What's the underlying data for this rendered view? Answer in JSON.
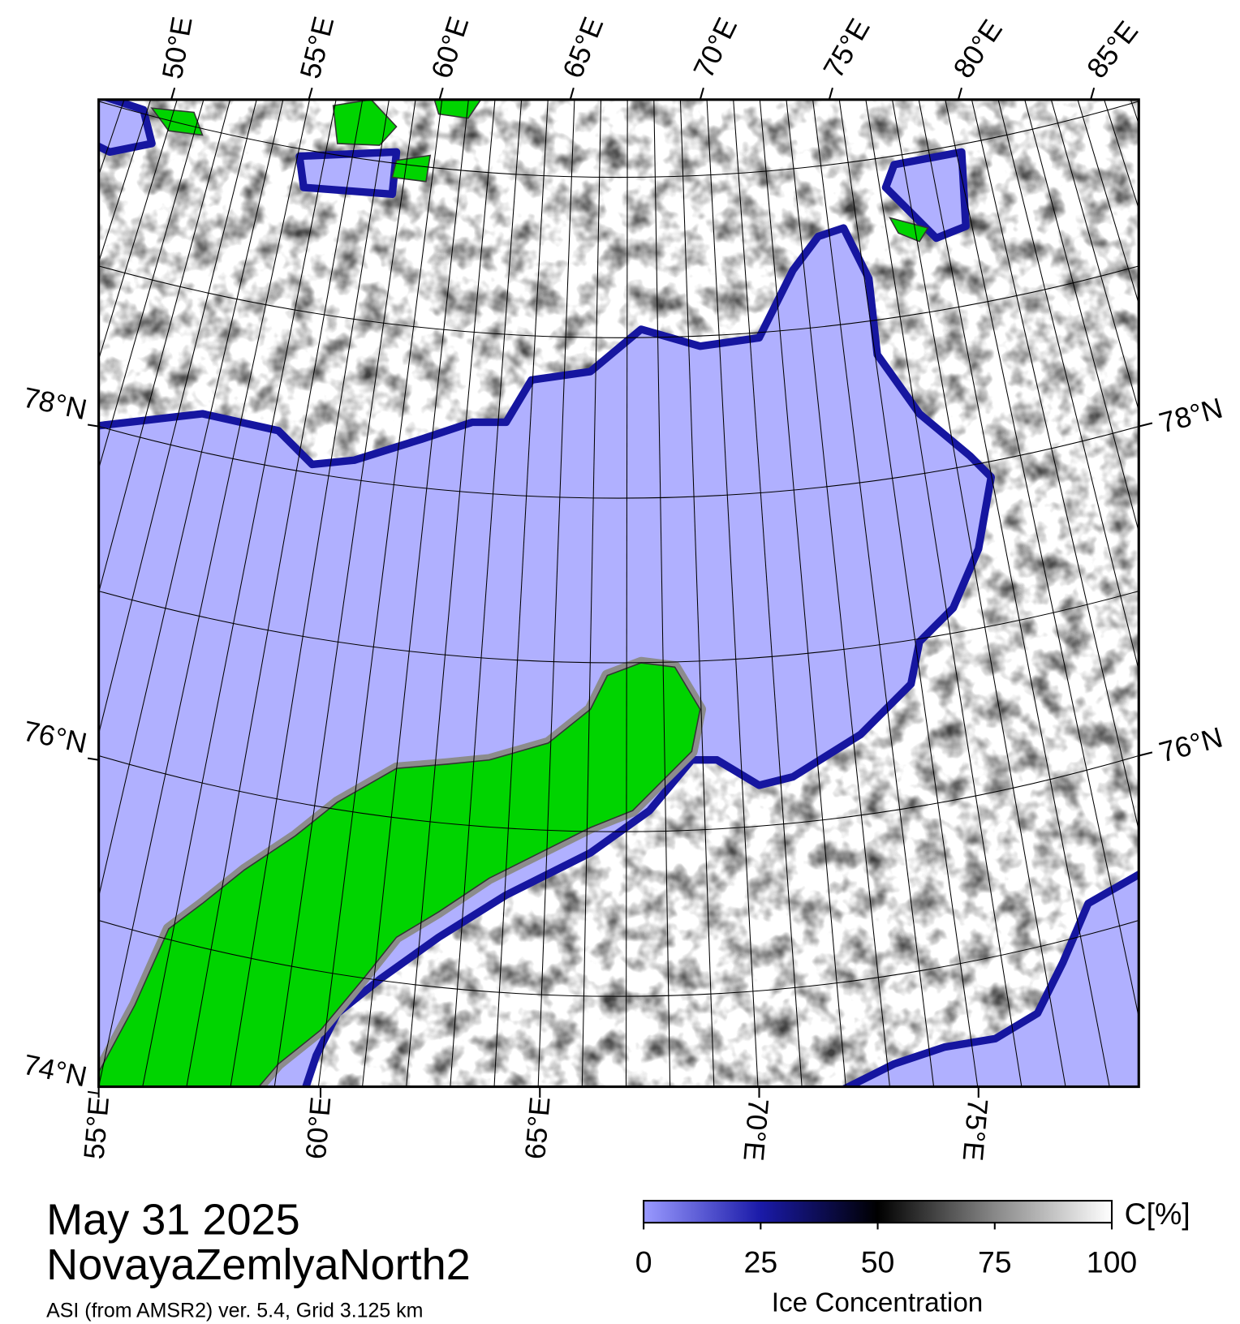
{
  "map": {
    "top_labels": [
      "50°E",
      "55°E",
      "60°E",
      "65°E",
      "70°E",
      "75°E",
      "80°E",
      "85°E"
    ],
    "bottom_labels": [
      "55°E",
      "60°E",
      "65°E",
      "70°E",
      "75°E"
    ],
    "left_labels": [
      "78°N",
      "76°N",
      "74°N"
    ],
    "right_labels": [
      "78°N",
      "76°N"
    ]
  },
  "caption": {
    "date": "May 31 2025",
    "region": "NovayaZemlyaNorth2",
    "source": "ASI (from AMSR2) ver. 5.4,  Grid 3.125 km"
  },
  "colorbar": {
    "ticks": [
      0,
      25,
      50,
      75,
      100
    ],
    "label": "Ice Concentration",
    "unit": "C[%]"
  }
}
